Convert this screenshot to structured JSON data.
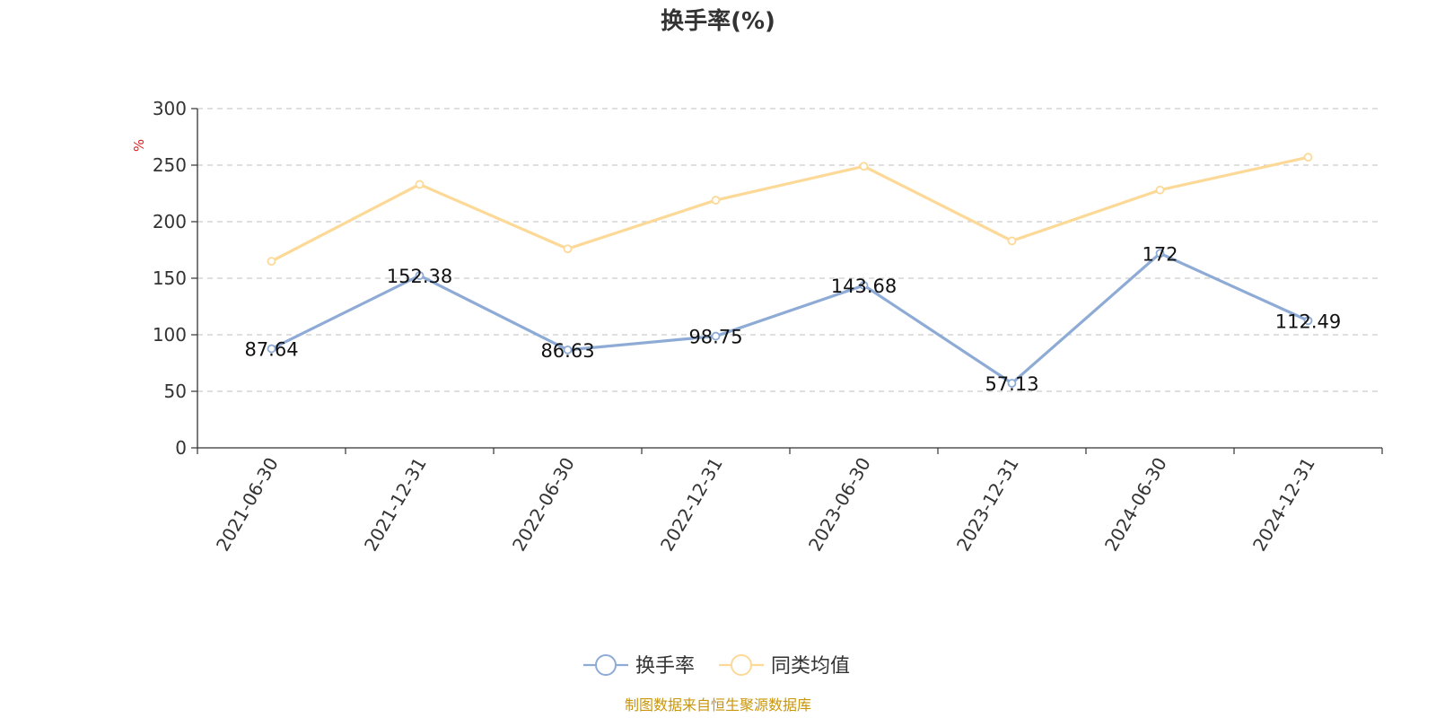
{
  "chart_data": {
    "type": "line",
    "title": "换手率(%)",
    "ylabel": "%",
    "ylim": [
      0,
      300
    ],
    "yticks": [
      0,
      50,
      100,
      150,
      200,
      250,
      300
    ],
    "grid": true,
    "legend_position": "bottom-center",
    "categories": [
      "2021-06-30",
      "2021-12-31",
      "2022-06-30",
      "2022-12-31",
      "2023-06-30",
      "2023-12-31",
      "2024-06-30",
      "2024-12-31"
    ],
    "series": [
      {
        "name": "换手率",
        "values": [
          87.64,
          152.38,
          86.63,
          98.75,
          143.68,
          57.13,
          172,
          112.49
        ],
        "color": "#8eabd6",
        "show_labels": true
      },
      {
        "name": "同类均值",
        "values": [
          165,
          233,
          176,
          219,
          249,
          183,
          228,
          257
        ],
        "color": "#fcd997",
        "show_labels": false
      }
    ]
  },
  "source_text": "制图数据来自恒生聚源数据库",
  "colors": {
    "axis": "#333333",
    "grid": "#cccccc",
    "unit": "#e02020",
    "source": "#c8960c"
  }
}
